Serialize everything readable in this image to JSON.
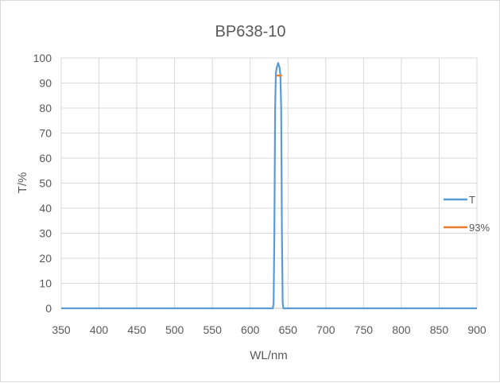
{
  "chart_data": {
    "type": "line",
    "title": "BP638-10",
    "xlabel": "WL/nm",
    "ylabel": "T/%",
    "xlim": [
      350,
      900
    ],
    "ylim": [
      0,
      100
    ],
    "xticks": [
      350,
      400,
      450,
      500,
      550,
      600,
      650,
      700,
      750,
      800,
      850,
      900
    ],
    "yticks": [
      0,
      10,
      20,
      30,
      40,
      50,
      60,
      70,
      80,
      90,
      100
    ],
    "grid": true,
    "legend": "right",
    "series": [
      {
        "name": "T",
        "color": "#5B9BD5",
        "x": [
          350,
          630,
          631,
          632,
          633,
          634,
          635,
          636,
          637,
          638,
          639,
          640,
          641,
          642,
          643,
          644,
          900
        ],
        "y": [
          0,
          0,
          2,
          30,
          80,
          94,
          96,
          97,
          98,
          97,
          96,
          93,
          80,
          30,
          2,
          0,
          0
        ]
      },
      {
        "name": "93%",
        "color": "#ED7D31",
        "x": [
          634,
          642
        ],
        "y": [
          93,
          93
        ]
      }
    ]
  }
}
